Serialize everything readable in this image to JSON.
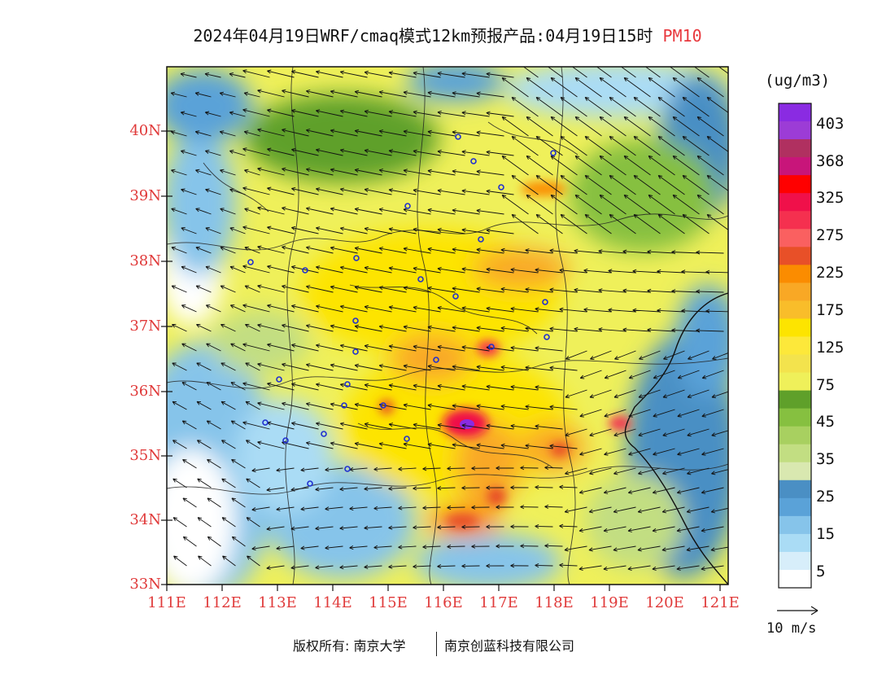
{
  "title": {
    "main": "2024年04月19日WRF/cmaq模式12km预报产品:04月19日15时",
    "variable": "PM10"
  },
  "unit": "(ug/m3)",
  "lat_labels": [
    "40N",
    "39N",
    "38N",
    "37N",
    "36N",
    "35N",
    "34N",
    "33N"
  ],
  "lon_labels": [
    "111E",
    "112E",
    "113E",
    "114E",
    "115E",
    "116E",
    "117E",
    "118E",
    "119E",
    "120E",
    "121E"
  ],
  "colorbar": {
    "labels": [
      "403",
      "368",
      "325",
      "275",
      "225",
      "175",
      "125",
      "75",
      "45",
      "35",
      "25",
      "15",
      "5"
    ],
    "colors": [
      "#8a2be2",
      "#9c3cd6",
      "#b03060",
      "#c8157a",
      "#ff0000",
      "#f0104a",
      "#f5304f",
      "#fa6060",
      "#e85028",
      "#fb8c00",
      "#f9a825",
      "#f9bd2a",
      "#fde400",
      "#fde83a",
      "#f3e34d",
      "#eff05a",
      "#5fa02a",
      "#86c040",
      "#a8d060",
      "#c2de82",
      "#d9e8b0",
      "#4a8fc4",
      "#5aa2d8",
      "#86c4ea",
      "#aadcf5",
      "#d7eefa",
      "#ffffff"
    ]
  },
  "wind_reference": "10 m/s",
  "footer": {
    "copyright": "版权所有: 南京大学",
    "company": "南京创蓝科技有限公司"
  }
}
